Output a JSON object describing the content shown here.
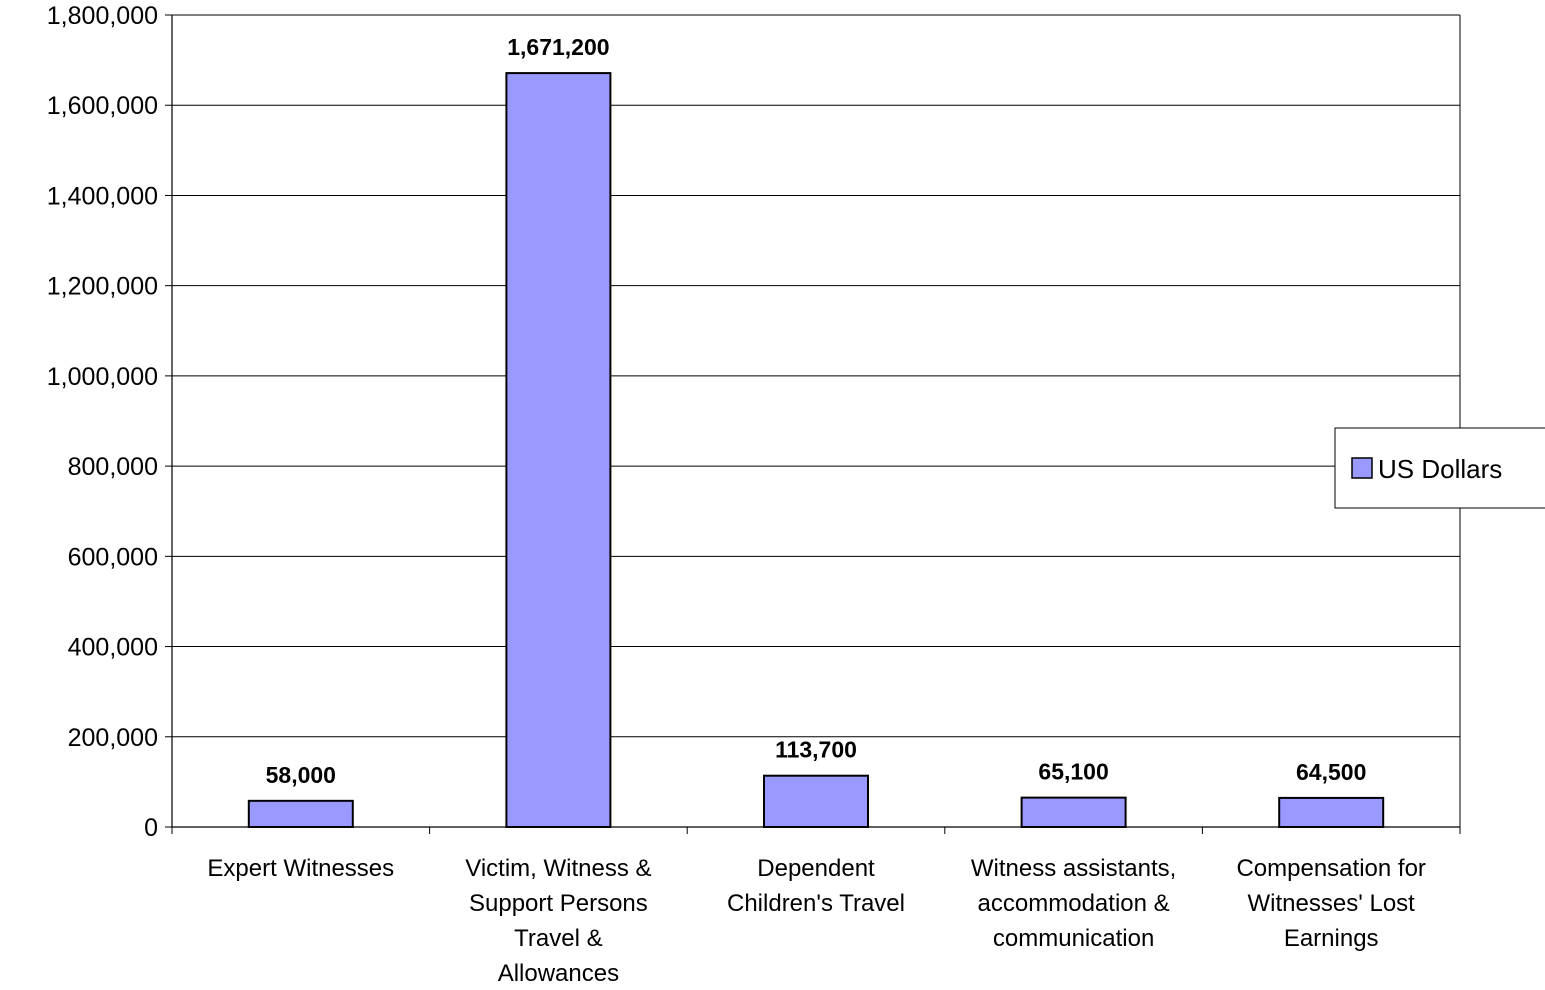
{
  "chart_data": {
    "type": "bar",
    "title": "",
    "xlabel": "",
    "ylabel": "",
    "categories": [
      [
        "Expert Witnesses"
      ],
      [
        "Victim, Witness &",
        "Support Persons",
        "Travel &",
        "Allowances"
      ],
      [
        "Dependent",
        "Children's Travel"
      ],
      [
        "Witness assistants,",
        "accommodation &",
        "communication"
      ],
      [
        "Compensation for",
        "Witnesses' Lost",
        "Earnings"
      ]
    ],
    "series": [
      {
        "name": "US Dollars",
        "values": [
          58000,
          1671200,
          113700,
          65100,
          64500
        ],
        "value_labels": [
          "58,000",
          "1,671,200",
          "113,700",
          "65,100",
          "64,500"
        ],
        "color": "#9999ff"
      }
    ],
    "ylim": [
      0,
      1800000
    ],
    "yticks": [
      0,
      200000,
      400000,
      600000,
      800000,
      1000000,
      1200000,
      1400000,
      1600000,
      1800000
    ],
    "ytick_labels": [
      "0",
      "200,000",
      "400,000",
      "600,000",
      "800,000",
      "1,000,000",
      "1,200,000",
      "1,400,000",
      "1,600,000",
      "1,800,000"
    ],
    "grid": true,
    "legend_position": "right",
    "colors": {
      "bar": "#9999ff",
      "bar_stroke": "#000000",
      "grid": "#000000"
    }
  }
}
